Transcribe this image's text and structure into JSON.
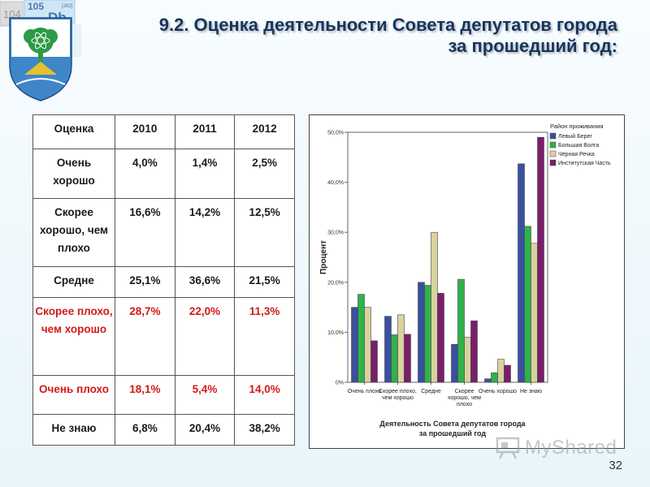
{
  "header": {
    "title_line1": "9.2. Оценка деятельности Совета депутатов города",
    "title_line2": "за прошедший год:"
  },
  "decor": {
    "tile1": "104",
    "tile2": "105",
    "tile2_symbol": "Db",
    "tile2_small": "[262]"
  },
  "table": {
    "headers": [
      "Оценка",
      "2010",
      "2011",
      "2012"
    ],
    "rows": [
      {
        "label": "Очень хорошо",
        "values": [
          "4,0%",
          "1,4%",
          "2,5%"
        ]
      },
      {
        "label": "Скорее хорошо, чем плохо",
        "values": [
          "16,6%",
          "14,2%",
          "12,5%"
        ]
      },
      {
        "label": "Средне",
        "values": [
          "25,1%",
          "36,6%",
          "21,5%"
        ]
      },
      {
        "label": "Скорее плохо, чем хорошо",
        "values": [
          "28,7%",
          "22,0%",
          "11,3%"
        ]
      },
      {
        "label": "Очень плохо",
        "values": [
          "18,1%",
          "5,4%",
          "14,0%"
        ]
      },
      {
        "label": "Не знаю",
        "values": [
          "6,8%",
          "20,4%",
          "38,2%"
        ]
      }
    ],
    "highlight_color": "#d21a1a"
  },
  "chart_data": {
    "type": "bar",
    "ylabel": "Процент",
    "xlabel": "Деятельность Совета депутатов города за прошедший год",
    "ylim": [
      0,
      50
    ],
    "yticks": [
      "0%",
      "10,0%",
      "20,0%",
      "30,0%",
      "40,0%",
      "50,0%"
    ],
    "legend_title": "Район проживания",
    "legend_placement": "top-right",
    "categories": [
      "Очень плохо",
      "Скорее плохо, чем хорошо",
      "Средне",
      "Скорее хорошо, чем плохо",
      "Очень хорошо",
      "Не знаю"
    ],
    "series": [
      {
        "name": "Левый Берег",
        "color": "#3b4fa0",
        "values": [
          15.0,
          13.2,
          20.0,
          7.6,
          0.7,
          43.7
        ]
      },
      {
        "name": "Большая Волга",
        "color": "#2fb24a",
        "values": [
          17.6,
          9.5,
          19.4,
          20.6,
          1.9,
          31.2
        ]
      },
      {
        "name": "Чёрная Речка",
        "color": "#d9d29e",
        "values": [
          15.0,
          13.5,
          30.0,
          9.0,
          4.6,
          27.8
        ]
      },
      {
        "name": "Институтская Часть",
        "color": "#7a1e6b",
        "values": [
          8.3,
          9.6,
          17.8,
          12.3,
          3.4,
          49.0
        ]
      }
    ]
  },
  "footer": {
    "watermark": "MyShared",
    "page_number": "32"
  }
}
